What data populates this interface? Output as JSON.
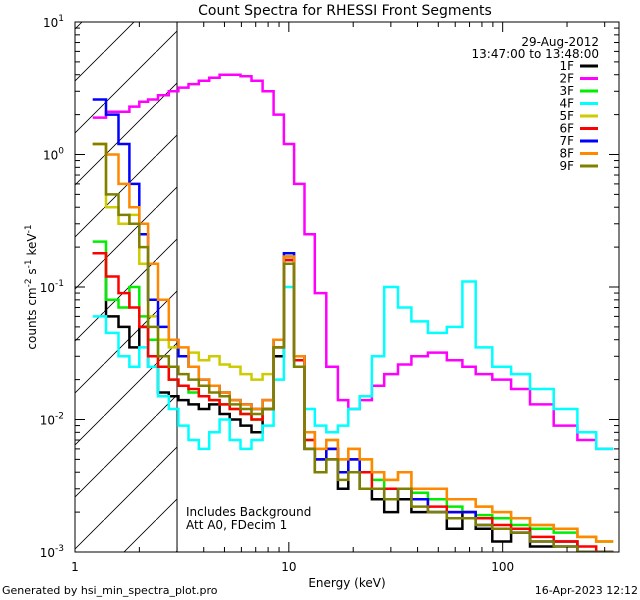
{
  "chart_data": {
    "type": "line",
    "title": "Count Spectra for RHESSI Front Segments",
    "xlabel": "Energy (keV)",
    "ylabel_parts": [
      "counts cm",
      "-2",
      " s",
      "-1",
      " keV",
      "-1"
    ],
    "xscale": "log",
    "yscale": "log",
    "xlim": [
      1,
      350
    ],
    "ylim": [
      0.001,
      10
    ],
    "x_ticks": [
      {
        "value": 1,
        "label": "1"
      },
      {
        "value": 10,
        "label": "10"
      },
      {
        "value": 100,
        "label": "100"
      }
    ],
    "y_ticks": [
      {
        "value": 0.001,
        "base": "10",
        "exp": "-3"
      },
      {
        "value": 0.01,
        "base": "10",
        "exp": "-2"
      },
      {
        "value": 0.1,
        "base": "10",
        "exp": "-1"
      },
      {
        "value": 1,
        "base": "10",
        "exp": "0"
      },
      {
        "value": 10,
        "base": "10",
        "exp": "1"
      }
    ],
    "shaded_region": {
      "x_from": 1,
      "x_to": 3,
      "pattern": "diagonal-hatch"
    },
    "date": "29-Aug-2012",
    "time_range": "13:47:00 to 13:48:00",
    "annotations": [
      "Includes Background",
      "Att A0, FDecim 1"
    ],
    "footer_left": "Generated by hsi_min_spectra_plot.pro",
    "footer_right": "16-Apr-2023 12:12",
    "series": [
      {
        "name": "1F",
        "color": "#000000",
        "x": [
          1.3,
          1.5,
          1.7,
          1.9,
          2.1,
          2.3,
          2.6,
          2.9,
          3.2,
          3.6,
          4.0,
          4.5,
          5.0,
          5.6,
          6.3,
          7.1,
          8.0,
          9.0,
          10.0,
          11.2,
          12.5,
          14,
          16,
          18,
          20,
          23,
          26,
          30,
          35,
          40,
          50,
          60,
          70,
          80,
          100,
          120,
          150,
          200,
          250,
          300
        ],
        "y": [
          0.18,
          0.06,
          0.05,
          0.035,
          0.05,
          0.025,
          0.016,
          0.015,
          0.014,
          0.013,
          0.012,
          0.013,
          0.011,
          0.01,
          0.009,
          0.008,
          0.012,
          0.03,
          0.16,
          0.03,
          0.006,
          0.004,
          0.005,
          0.003,
          0.004,
          0.003,
          0.0025,
          0.002,
          0.0025,
          0.002,
          0.002,
          0.0015,
          0.002,
          0.0015,
          0.0012,
          0.0015,
          0.0011,
          0.0012,
          0.001,
          0.001
        ]
      },
      {
        "name": "2F",
        "color": "#ff00ff",
        "x": [
          1.3,
          1.5,
          1.7,
          1.9,
          2.1,
          2.3,
          2.6,
          2.9,
          3.2,
          3.6,
          4.0,
          4.5,
          5.0,
          5.6,
          6.3,
          7.1,
          8.0,
          9.0,
          10.0,
          11.2,
          12.5,
          14,
          16,
          18,
          20,
          23,
          26,
          30,
          35,
          40,
          50,
          60,
          70,
          80,
          100,
          120,
          150,
          200,
          250,
          300
        ],
        "y": [
          1.9,
          2.1,
          2.1,
          2.3,
          2.5,
          2.6,
          2.8,
          3.0,
          3.2,
          3.4,
          3.6,
          3.8,
          4.0,
          4.0,
          3.9,
          3.6,
          3.0,
          2.0,
          1.2,
          0.6,
          0.25,
          0.09,
          0.025,
          0.014,
          0.012,
          0.014,
          0.018,
          0.022,
          0.026,
          0.03,
          0.032,
          0.028,
          0.025,
          0.022,
          0.02,
          0.017,
          0.013,
          0.009,
          0.007,
          0.006
        ]
      },
      {
        "name": "3F",
        "color": "#00ee00",
        "x": [
          1.3,
          1.5,
          1.7,
          1.9,
          2.1,
          2.3,
          2.6,
          2.9,
          3.2,
          3.6,
          4.0,
          4.5,
          5.0,
          5.6,
          6.3,
          7.1,
          8.0,
          9.0,
          10.0,
          11.2,
          12.5,
          14,
          16,
          18,
          20,
          23,
          26,
          30,
          35,
          40,
          50,
          60,
          70,
          80,
          100,
          120,
          150,
          200,
          250,
          300
        ],
        "y": [
          0.22,
          0.08,
          0.07,
          0.1,
          0.06,
          0.04,
          0.025,
          0.02,
          0.018,
          0.016,
          0.015,
          0.014,
          0.013,
          0.012,
          0.011,
          0.01,
          0.012,
          0.035,
          0.17,
          0.025,
          0.007,
          0.005,
          0.006,
          0.004,
          0.005,
          0.004,
          0.0035,
          0.003,
          0.003,
          0.0028,
          0.0025,
          0.0022,
          0.002,
          0.0019,
          0.0018,
          0.0016,
          0.0015,
          0.0014,
          0.0013,
          0.0012
        ]
      },
      {
        "name": "4F",
        "color": "#00ffff",
        "x": [
          1.3,
          1.5,
          1.7,
          1.9,
          2.1,
          2.3,
          2.6,
          2.9,
          3.2,
          3.6,
          4.0,
          4.5,
          5.0,
          5.6,
          6.3,
          7.1,
          8.0,
          9.0,
          10.0,
          11.2,
          12.5,
          14,
          16,
          18,
          20,
          23,
          26,
          30,
          35,
          40,
          50,
          60,
          70,
          80,
          100,
          120,
          150,
          200,
          250,
          300
        ],
        "y": [
          0.06,
          0.045,
          0.03,
          0.025,
          0.035,
          0.025,
          0.015,
          0.012,
          0.009,
          0.007,
          0.006,
          0.008,
          0.01,
          0.007,
          0.006,
          0.007,
          0.009,
          0.02,
          0.1,
          0.03,
          0.012,
          0.009,
          0.008,
          0.009,
          0.012,
          0.015,
          0.03,
          0.1,
          0.07,
          0.055,
          0.045,
          0.05,
          0.11,
          0.035,
          0.025,
          0.022,
          0.017,
          0.012,
          0.008,
          0.006
        ]
      },
      {
        "name": "5F",
        "color": "#cccc00",
        "x": [
          1.3,
          1.5,
          1.7,
          1.9,
          2.1,
          2.3,
          2.6,
          2.9,
          3.2,
          3.6,
          4.0,
          4.5,
          5.0,
          5.6,
          6.3,
          7.1,
          8.0,
          9.0,
          10.0,
          11.2,
          12.5,
          14,
          16,
          18,
          20,
          23,
          26,
          30,
          35,
          40,
          50,
          60,
          70,
          80,
          100,
          120,
          150,
          200,
          250,
          300
        ],
        "y": [
          1.2,
          0.4,
          0.3,
          0.35,
          0.15,
          0.06,
          0.04,
          0.035,
          0.03,
          0.032,
          0.028,
          0.03,
          0.026,
          0.025,
          0.022,
          0.02,
          0.022,
          0.04,
          0.15,
          0.03,
          0.008,
          0.006,
          0.007,
          0.005,
          0.006,
          0.005,
          0.004,
          0.0035,
          0.004,
          0.003,
          0.003,
          0.0025,
          0.0025,
          0.0022,
          0.002,
          0.0018,
          0.0016,
          0.0015,
          0.0013,
          0.0012
        ]
      },
      {
        "name": "6F",
        "color": "#ff0000",
        "x": [
          1.3,
          1.5,
          1.7,
          1.9,
          2.1,
          2.3,
          2.6,
          2.9,
          3.2,
          3.6,
          4.0,
          4.5,
          5.0,
          5.6,
          6.3,
          7.1,
          8.0,
          9.0,
          10.0,
          11.2,
          12.5,
          14,
          16,
          18,
          20,
          23,
          26,
          30,
          35,
          40,
          50,
          60,
          70,
          80,
          100,
          120,
          150,
          200,
          250,
          300
        ],
        "y": [
          0.18,
          0.12,
          0.09,
          0.07,
          0.05,
          0.03,
          0.025,
          0.02,
          0.018,
          0.017,
          0.015,
          0.014,
          0.013,
          0.012,
          0.011,
          0.01,
          0.012,
          0.035,
          0.16,
          0.028,
          0.007,
          0.005,
          0.006,
          0.004,
          0.005,
          0.004,
          0.003,
          0.003,
          0.003,
          0.0025,
          0.0022,
          0.002,
          0.002,
          0.0018,
          0.0016,
          0.0015,
          0.0013,
          0.0012,
          0.0011,
          0.001
        ]
      },
      {
        "name": "7F",
        "color": "#0000ff",
        "x": [
          1.3,
          1.5,
          1.7,
          1.9,
          2.1,
          2.3,
          2.6,
          2.9,
          3.2,
          3.6,
          4.0,
          4.5,
          5.0,
          5.6,
          6.3,
          7.1,
          8.0,
          9.0,
          10.0,
          11.2,
          12.5,
          14,
          16,
          18,
          20,
          23,
          26,
          30,
          35,
          40,
          50,
          60,
          70,
          80,
          100,
          120,
          150,
          200,
          250,
          300
        ],
        "y": [
          2.6,
          2.0,
          1.2,
          0.6,
          0.25,
          0.08,
          0.05,
          0.04,
          0.03,
          0.025,
          0.02,
          0.018,
          0.016,
          0.014,
          0.013,
          0.012,
          0.014,
          0.04,
          0.18,
          0.03,
          0.008,
          0.005,
          0.006,
          0.004,
          0.005,
          0.003,
          0.003,
          0.0025,
          0.003,
          0.0025,
          0.002,
          0.002,
          0.002,
          0.0016,
          0.0015,
          0.0014,
          0.0012,
          0.0011,
          0.001,
          0.001
        ]
      },
      {
        "name": "8F",
        "color": "#ff8800",
        "x": [
          1.3,
          1.5,
          1.7,
          1.9,
          2.1,
          2.3,
          2.6,
          2.9,
          3.2,
          3.6,
          4.0,
          4.5,
          5.0,
          5.6,
          6.3,
          7.1,
          8.0,
          9.0,
          10.0,
          11.2,
          12.5,
          14,
          16,
          18,
          20,
          23,
          26,
          30,
          35,
          40,
          50,
          60,
          70,
          80,
          100,
          120,
          150,
          200,
          250,
          300
        ],
        "y": [
          1.2,
          1.0,
          0.6,
          0.4,
          0.3,
          0.15,
          0.08,
          0.04,
          0.035,
          0.025,
          0.02,
          0.018,
          0.016,
          0.014,
          0.013,
          0.012,
          0.014,
          0.04,
          0.17,
          0.03,
          0.008,
          0.006,
          0.007,
          0.005,
          0.006,
          0.005,
          0.004,
          0.0035,
          0.004,
          0.003,
          0.003,
          0.0025,
          0.0025,
          0.0022,
          0.002,
          0.0018,
          0.0016,
          0.0015,
          0.0013,
          0.0012
        ]
      },
      {
        "name": "9F",
        "color": "#808000",
        "x": [
          1.3,
          1.5,
          1.7,
          1.9,
          2.1,
          2.3,
          2.6,
          2.9,
          3.2,
          3.6,
          4.0,
          4.5,
          5.0,
          5.6,
          6.3,
          7.1,
          8.0,
          9.0,
          10.0,
          11.2,
          12.5,
          14,
          16,
          18,
          20,
          23,
          26,
          30,
          35,
          40,
          50,
          60,
          70,
          80,
          100,
          120,
          150,
          200,
          250,
          300
        ],
        "y": [
          1.2,
          0.5,
          0.35,
          0.3,
          0.2,
          0.05,
          0.03,
          0.025,
          0.022,
          0.02,
          0.018,
          0.016,
          0.015,
          0.013,
          0.012,
          0.011,
          0.012,
          0.035,
          0.15,
          0.025,
          0.006,
          0.004,
          0.005,
          0.0035,
          0.004,
          0.003,
          0.003,
          0.0025,
          0.003,
          0.0022,
          0.002,
          0.0018,
          0.0018,
          0.0016,
          0.0015,
          0.0014,
          0.0012,
          0.0011,
          0.001,
          0.001
        ]
      }
    ]
  }
}
